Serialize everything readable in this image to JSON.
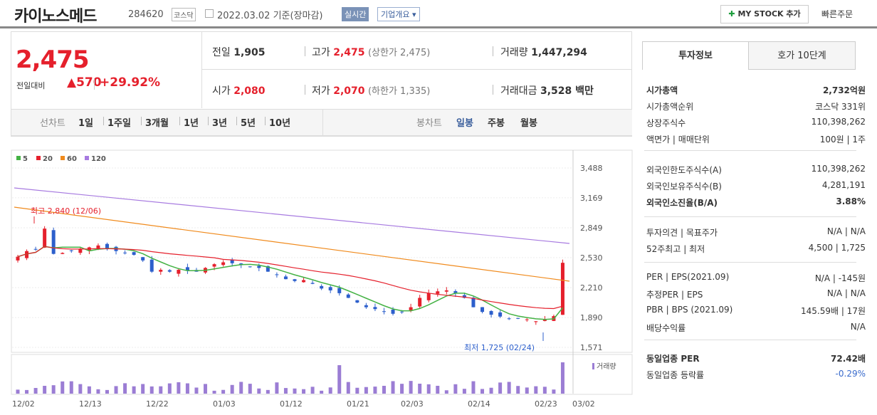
{
  "header": {
    "company": "카이노스메드",
    "code": "284620",
    "market": "코스닥",
    "date": "2022.03.02 기준(장마감)",
    "realtime": "실시간",
    "company_info": "기업개요",
    "mystock": "MY STOCK 추가",
    "quick_order": "빠른주문"
  },
  "quote": {
    "price": "2,475",
    "change_label": "전일대비",
    "change": "570",
    "change_pct": "+29.92%",
    "prev_label": "전일",
    "prev": "1,905",
    "high_label": "고가",
    "high": "2,475",
    "upper_limit": "(상한가 2,475)",
    "volume_label": "거래량",
    "volume": "1,447,294",
    "open_label": "시가",
    "open": "2,080",
    "low_label": "저가",
    "low": "2,070",
    "lower_limit": "(하한가 1,335)",
    "amount_label": "거래대금",
    "amount": "3,528 백만"
  },
  "toolbar": {
    "line_label": "선차트",
    "periods": [
      "1일",
      "1주일",
      "3개월",
      "1년",
      "3년",
      "5년",
      "10년"
    ],
    "candle_label": "봉차트",
    "candles": [
      "일봉",
      "주봉",
      "월봉"
    ]
  },
  "chart_data": {
    "type": "candlestick",
    "legend": [
      "5",
      "20",
      "60",
      "120"
    ],
    "colors": {
      "ma5": "#44b244",
      "ma20": "#e5202c",
      "ma60": "#f08a1c",
      "ma120": "#a77ae0",
      "up": "#e5202c",
      "down": "#2c5fcc",
      "volume": "#9b7dd4"
    },
    "y_ticks": [
      "3,488",
      "3,169",
      "2,849",
      "2,530",
      "2,210",
      "1,890",
      "1,571"
    ],
    "ylim": [
      1571,
      3488
    ],
    "x_labels": [
      "12/02",
      "12/13",
      "12/22",
      "01/03",
      "01/12",
      "01/21",
      "02/03",
      "02/14",
      "02/23",
      "03/02"
    ],
    "high_annotation": "최고 2,840 (12/06)",
    "low_annotation": "최저 1,725 (02/24)",
    "volume_label": "거래량"
  },
  "side": {
    "tab1": "투자정보",
    "tab2": "호가 10단계",
    "rows": [
      {
        "label": "시가총액",
        "value": "2,732억원"
      },
      {
        "label": "시가총액순위",
        "value": "코스닥 331위"
      },
      {
        "label": "상장주식수",
        "value": "110,398,262"
      },
      {
        "label": "액면가 | 매매단위",
        "value": "100원 | 1주"
      },
      {
        "label": "외국인한도주식수(A)",
        "value": "110,398,262"
      },
      {
        "label": "외국인보유주식수(B)",
        "value": "4,281,191"
      },
      {
        "label": "외국인소진율(B/A)",
        "value": "3.88%"
      },
      {
        "label": "투자의견 | 목표주가",
        "value": "N/A | N/A"
      },
      {
        "label": "52주최고 | 최저",
        "value": "4,500 | 1,725"
      },
      {
        "label": "PER | EPS(2021.09)",
        "value": "N/A | -145원"
      },
      {
        "label": "추정PER | EPS",
        "value": "N/A | N/A"
      },
      {
        "label": "PBR | BPS (2021.09)",
        "value": "145.59배 | 17원"
      },
      {
        "label": "배당수익률",
        "value": "N/A"
      },
      {
        "label": "동일업종 PER",
        "value": "72.42배"
      },
      {
        "label": "동일업종 등락률",
        "value": "-0.29%"
      }
    ]
  }
}
